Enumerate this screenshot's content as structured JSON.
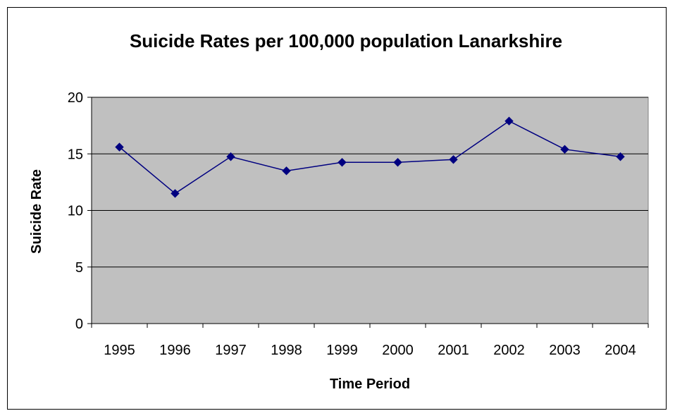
{
  "chart_data": {
    "type": "line",
    "title": "Suicide Rates per 100,000 population Lanarkshire",
    "xlabel": "Time Period",
    "ylabel": "Suicide Rate",
    "categories": [
      "1995",
      "1996",
      "1997",
      "1998",
      "1999",
      "2000",
      "2001",
      "2002",
      "2003",
      "2004"
    ],
    "series": [
      {
        "values": [
          15.6,
          11.5,
          14.75,
          13.5,
          14.25,
          14.25,
          14.5,
          17.9,
          15.4,
          14.75
        ],
        "color": "#000080"
      }
    ],
    "ylim": [
      0,
      20
    ],
    "yticks": [
      "0",
      "5",
      "10",
      "15",
      "20"
    ],
    "grid": "horizontal",
    "plot_background": "#c0c0c0",
    "marker": "diamond"
  }
}
